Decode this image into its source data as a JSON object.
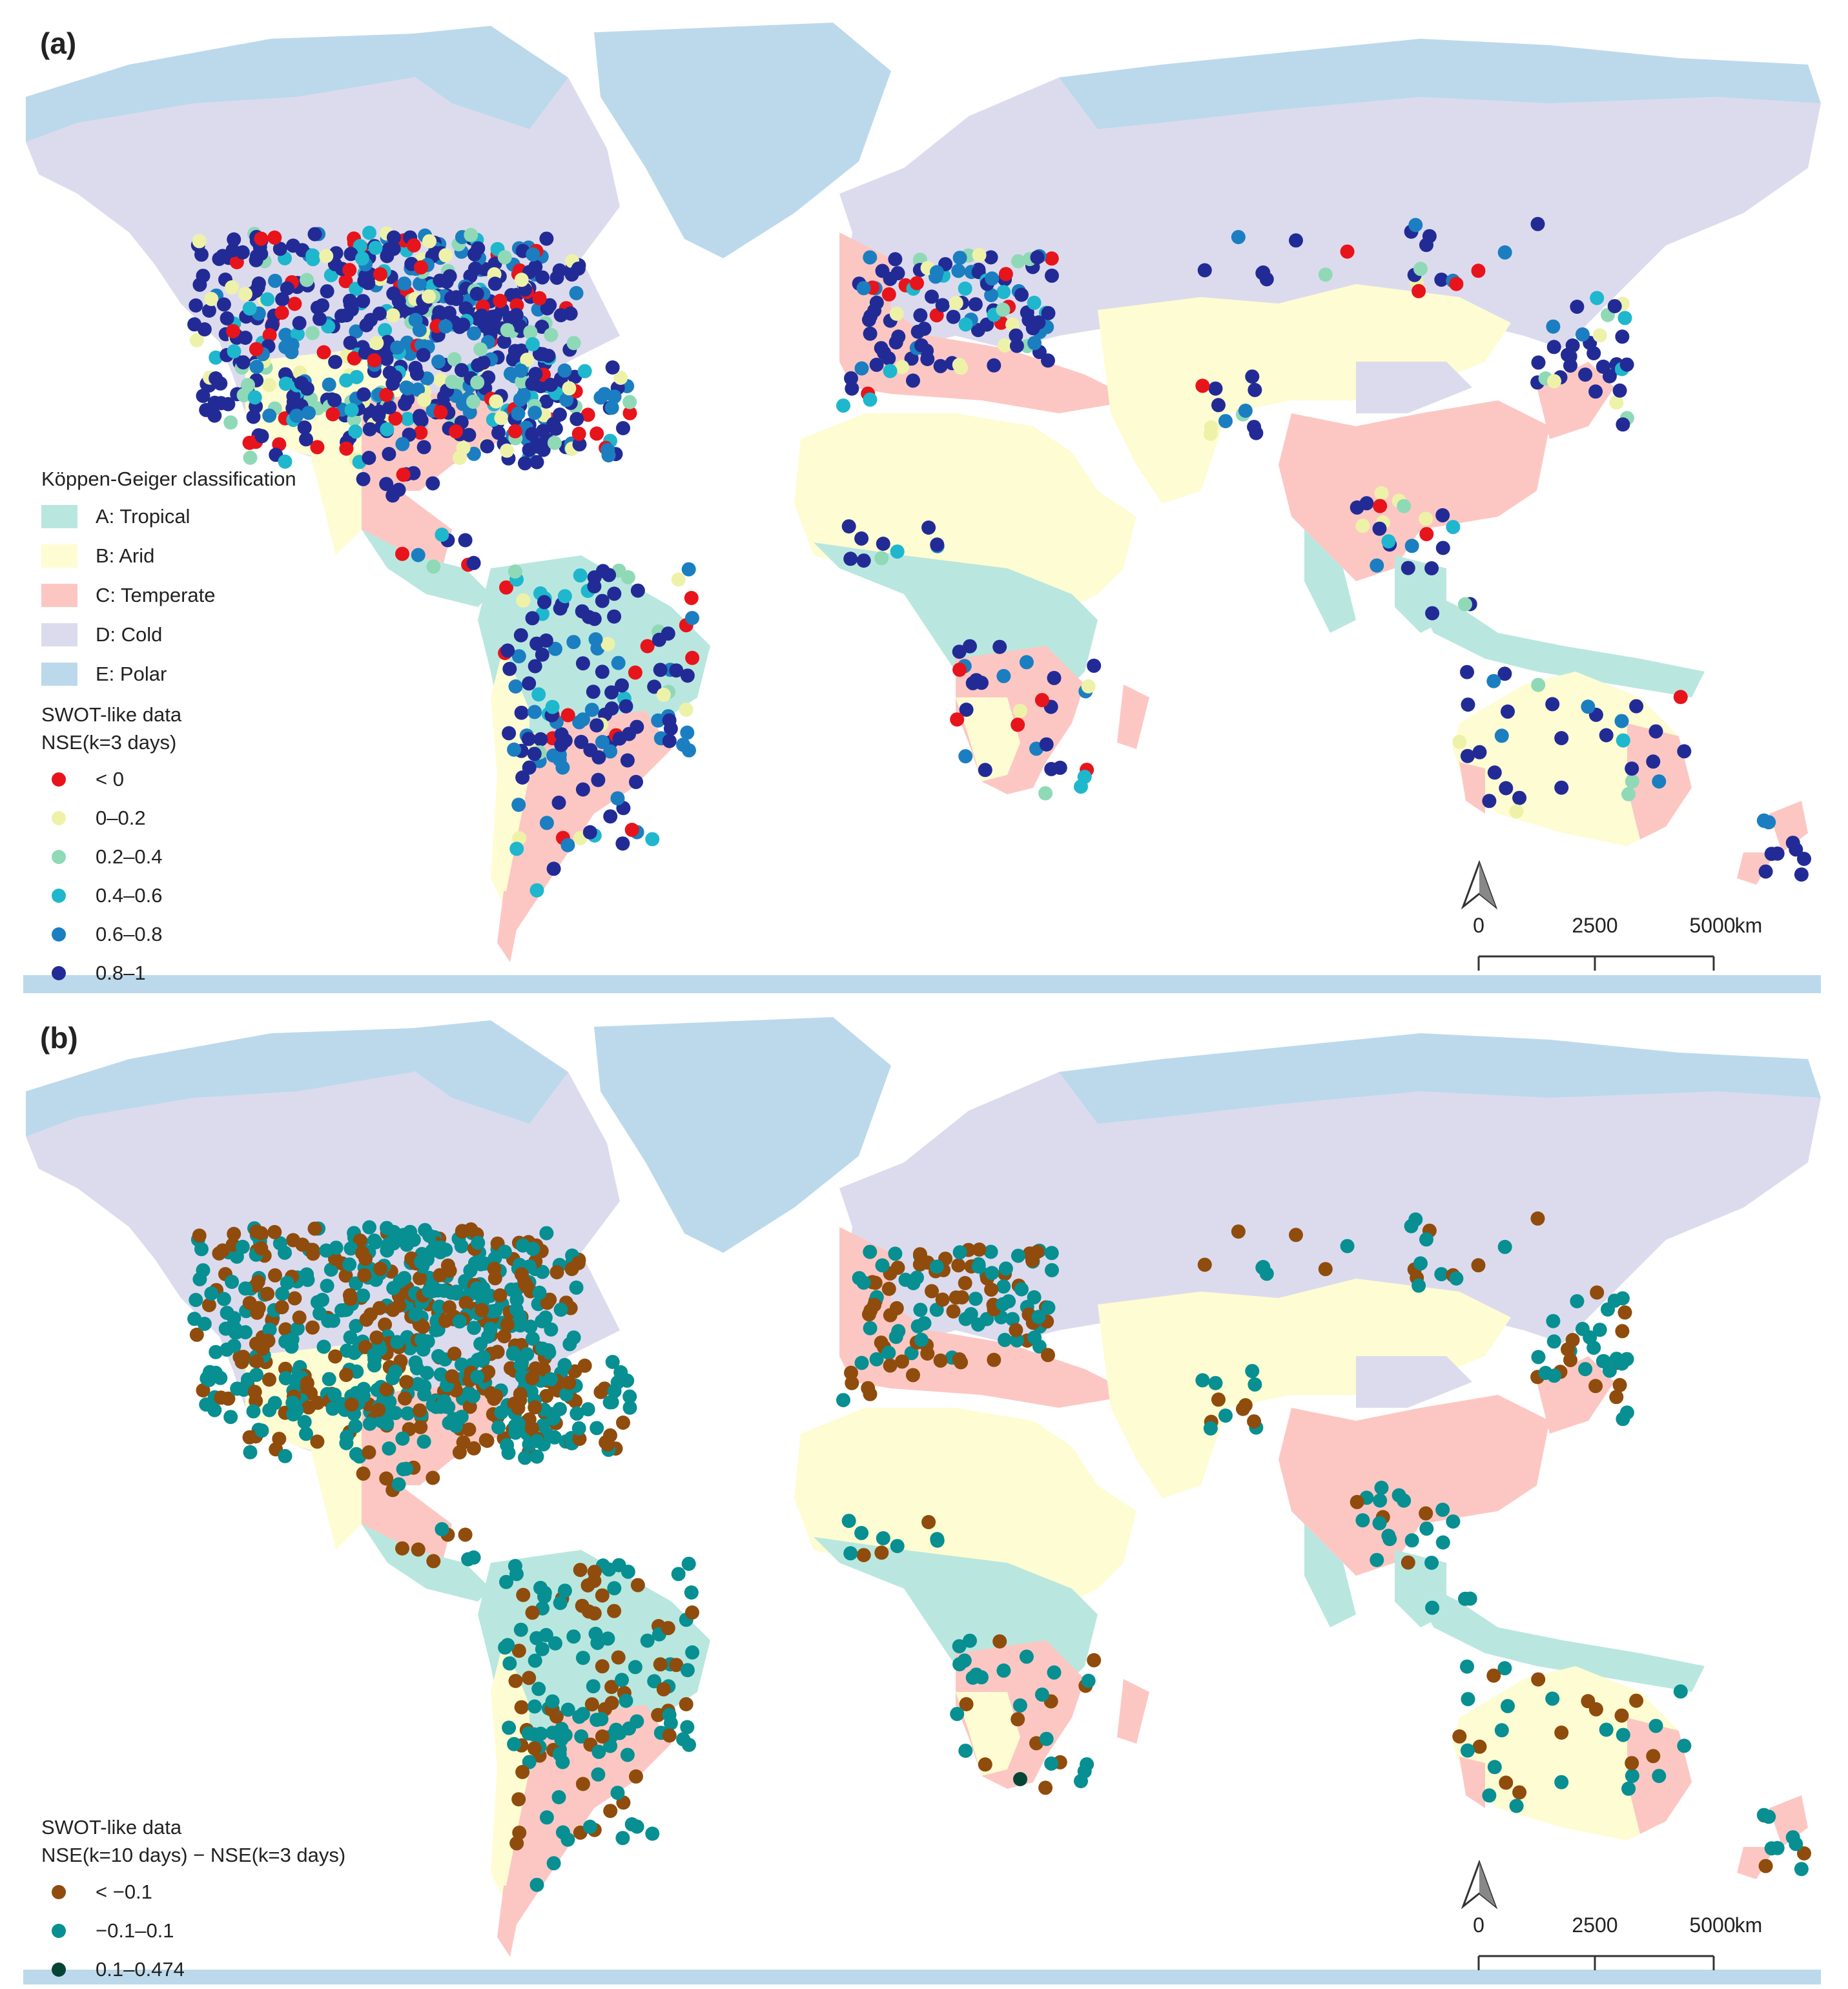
{
  "colors": {
    "ocean": "#ffffff",
    "climate": {
      "A": "#b9e7df",
      "B": "#fefcd2",
      "C": "#fcc7c3",
      "D": "#dcdbee",
      "E": "#bcd9ec"
    },
    "nse_a": {
      "lt0": "#e8141b",
      "c0_02": "#eef2a8",
      "c02_04": "#8fd9b7",
      "c04_06": "#1fb7cd",
      "c06_08": "#1b7ec1",
      "c08_1": "#222b95"
    },
    "diff_b": {
      "lt_m01": "#8f4c0c",
      "m01_01": "#078f92",
      "c01_0474": "#064535"
    }
  },
  "panel_a": {
    "label": "(a)",
    "koppen_title": "Köppen-Geiger classification",
    "koppen_items": [
      {
        "key": "A",
        "label": "A: Tropical"
      },
      {
        "key": "B",
        "label": "B: Arid"
      },
      {
        "key": "C",
        "label": "C: Temperate"
      },
      {
        "key": "D",
        "label": "D: Cold"
      },
      {
        "key": "E",
        "label": "E: Polar"
      }
    ],
    "data_title": "SWOT-like data\nNSE(k=3 days)",
    "data_items": [
      {
        "key": "lt0",
        "label": "< 0"
      },
      {
        "key": "c0_02",
        "label": "0–0.2"
      },
      {
        "key": "c02_04",
        "label": "0.2–0.4"
      },
      {
        "key": "c04_06",
        "label": "0.4–0.6"
      },
      {
        "key": "c06_08",
        "label": "0.6–0.8"
      },
      {
        "key": "c08_1",
        "label": "0.8–1"
      }
    ]
  },
  "panel_b": {
    "label": "(b)",
    "data_title": "SWOT-like data\nNSE(k=10 days) − NSE(k=3 days)",
    "data_items": [
      {
        "key": "lt_m01",
        "label": "< −0.1"
      },
      {
        "key": "m01_01",
        "label": "−0.1–0.1"
      },
      {
        "key": "c01_0474",
        "label": "0.1–0.474"
      }
    ]
  },
  "scale_bar": {
    "labels": [
      "0",
      "2500",
      "5000"
    ],
    "unit": "km"
  }
}
